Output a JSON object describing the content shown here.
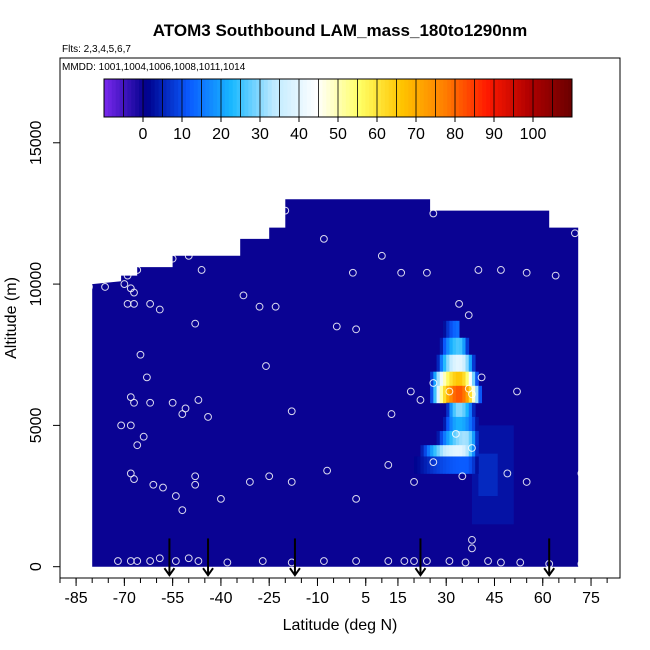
{
  "chart_data": {
    "type": "heatmap",
    "title": "ATOM3 Southbound LAM_mass_180to1290nm",
    "subtitle": "Flts: 2,3,4,5,6,7",
    "note": "MMDD: 1001,1004,1006,1008,1011,1014",
    "xlabel": "Latitude (deg N)",
    "ylabel": "Altitude (m)",
    "xlim": [
      -90,
      84
    ],
    "ylim": [
      -400,
      18000
    ],
    "x_ticks": [
      -85,
      -70,
      -55,
      -40,
      -25,
      -10,
      5,
      15,
      30,
      45,
      60,
      75
    ],
    "y_ticks": [
      0,
      5000,
      10000,
      15000
    ],
    "colorbar": {
      "ticks": [
        0,
        10,
        20,
        30,
        40,
        50,
        60,
        70,
        80,
        90,
        100
      ],
      "range": [
        -10,
        110
      ],
      "colors": [
        "#7a28ee",
        "#00008b",
        "#0a5bff",
        "#19b8ff",
        "#bfeaff",
        "#ffffff",
        "#ffff66",
        "#ffc400",
        "#ff7f00",
        "#ff1a00",
        "#b00000",
        "#6a0000"
      ]
    },
    "background_value": 0,
    "domain_outline": [
      [
        -80,
        0
      ],
      [
        -80,
        10000
      ],
      [
        -71,
        10100
      ],
      [
        -71,
        10300
      ],
      [
        -66,
        10300
      ],
      [
        -66,
        10600
      ],
      [
        -55,
        10600
      ],
      [
        -55,
        11000
      ],
      [
        -34,
        11000
      ],
      [
        -34,
        11600
      ],
      [
        -25,
        11600
      ],
      [
        -25,
        12000
      ],
      [
        -20,
        12000
      ],
      [
        -20,
        13000
      ],
      [
        25,
        13000
      ],
      [
        25,
        12600
      ],
      [
        62,
        12600
      ],
      [
        62,
        12000
      ],
      [
        71,
        12000
      ],
      [
        71,
        0
      ],
      [
        -66,
        0
      ],
      [
        -80,
        0
      ]
    ],
    "plume_rows": [
      {
        "alt": 8400,
        "lat_min": 29,
        "lat_max": 34,
        "peak": 34,
        "value": 14
      },
      {
        "alt": 7800,
        "lat_min": 28,
        "lat_max": 37,
        "peak": 34,
        "value": 26
      },
      {
        "alt": 7200,
        "lat_min": 27,
        "lat_max": 39,
        "peak": 34,
        "value": 40
      },
      {
        "alt": 6600,
        "lat_min": 25,
        "lat_max": 40,
        "peak": 34,
        "value": 66
      },
      {
        "alt": 6100,
        "lat_min": 25,
        "lat_max": 41,
        "peak": 34,
        "value": 82
      },
      {
        "alt": 5500,
        "lat_min": 30,
        "lat_max": 39,
        "peak": 34,
        "value": 30
      },
      {
        "alt": 5000,
        "lat_min": 29,
        "lat_max": 40,
        "peak": 34,
        "value": 22
      },
      {
        "alt": 4500,
        "lat_min": 27,
        "lat_max": 40,
        "peak": 36,
        "value": 32
      },
      {
        "alt": 4000,
        "lat_min": 22,
        "lat_max": 40,
        "peak": 34,
        "value": 40
      },
      {
        "alt": 3600,
        "lat_min": 20,
        "lat_max": 40,
        "peak": 36,
        "value": 12
      }
    ],
    "plume_tail": [
      {
        "lat_min": 38,
        "lat_max": 51,
        "alt_min": 1500,
        "alt_max": 5000,
        "value": 4
      },
      {
        "lat_min": 40,
        "lat_max": 46,
        "alt_min": 2500,
        "alt_max": 4000,
        "value": 7
      }
    ],
    "sample_points": [
      [
        -81,
        9900
      ],
      [
        -76,
        9900
      ],
      [
        -70,
        10000
      ],
      [
        -68,
        9850
      ],
      [
        -69,
        10300
      ],
      [
        -66,
        10500
      ],
      [
        -67,
        9700
      ],
      [
        -69,
        9300
      ],
      [
        -67,
        9300
      ],
      [
        -62,
        9300
      ],
      [
        -59,
        9100
      ],
      [
        -55,
        10900
      ],
      [
        -50,
        11000
      ],
      [
        -46,
        10500
      ],
      [
        -48,
        8600
      ],
      [
        -33,
        9600
      ],
      [
        -28,
        9200
      ],
      [
        -23,
        9200
      ],
      [
        -20,
        12600
      ],
      [
        -8,
        11600
      ],
      [
        1,
        10400
      ],
      [
        10,
        11000
      ],
      [
        16,
        10400
      ],
      [
        24,
        10400
      ],
      [
        26,
        12500
      ],
      [
        34,
        9300
      ],
      [
        37,
        8900
      ],
      [
        40,
        10500
      ],
      [
        47,
        10500
      ],
      [
        55,
        10400
      ],
      [
        64,
        10300
      ],
      [
        70,
        11800
      ],
      [
        -65,
        7500
      ],
      [
        -63,
        6700
      ],
      [
        -68,
        6000
      ],
      [
        -67,
        5800
      ],
      [
        -62,
        5800
      ],
      [
        -55,
        5800
      ],
      [
        -51,
        5600
      ],
      [
        -47,
        5900
      ],
      [
        -52,
        5400
      ],
      [
        -44,
        5300
      ],
      [
        -71,
        5000
      ],
      [
        -68,
        5000
      ],
      [
        -64,
        4600
      ],
      [
        -66,
        4300
      ],
      [
        -26,
        7100
      ],
      [
        -18,
        5500
      ],
      [
        -4,
        8500
      ],
      [
        2,
        8400
      ],
      [
        13,
        5400
      ],
      [
        19,
        6200
      ],
      [
        22,
        5900
      ],
      [
        26,
        6500
      ],
      [
        31,
        6200
      ],
      [
        33,
        4700
      ],
      [
        37,
        6300
      ],
      [
        38,
        6100
      ],
      [
        41,
        6700
      ],
      [
        52,
        6200
      ],
      [
        38,
        4200
      ],
      [
        -68,
        3300
      ],
      [
        -67,
        3100
      ],
      [
        -61,
        2900
      ],
      [
        -58,
        2800
      ],
      [
        -54,
        2500
      ],
      [
        -48,
        3200
      ],
      [
        -48,
        2900
      ],
      [
        -52,
        2000
      ],
      [
        -40,
        2400
      ],
      [
        -31,
        3000
      ],
      [
        -25,
        3200
      ],
      [
        -18,
        3000
      ],
      [
        -7,
        3400
      ],
      [
        2,
        2400
      ],
      [
        12,
        3600
      ],
      [
        20,
        3000
      ],
      [
        26,
        3700
      ],
      [
        35,
        3200
      ],
      [
        49,
        3300
      ],
      [
        55,
        3000
      ],
      [
        72,
        3300
      ],
      [
        -72,
        200
      ],
      [
        -68,
        200
      ],
      [
        -66,
        200
      ],
      [
        -62,
        200
      ],
      [
        -59,
        300
      ],
      [
        -54,
        200
      ],
      [
        -50,
        300
      ],
      [
        -47,
        200
      ],
      [
        -38,
        150
      ],
      [
        -27,
        200
      ],
      [
        -18,
        150
      ],
      [
        -8,
        200
      ],
      [
        2,
        200
      ],
      [
        12,
        200
      ],
      [
        17,
        200
      ],
      [
        20,
        200
      ],
      [
        24,
        200
      ],
      [
        31,
        200
      ],
      [
        38,
        950
      ],
      [
        38,
        650
      ],
      [
        36,
        150
      ],
      [
        43,
        200
      ],
      [
        47,
        150
      ],
      [
        53,
        150
      ],
      [
        62,
        100
      ],
      [
        72,
        100
      ]
    ],
    "arrows_lat": [
      -56,
      -44,
      -17,
      22,
      62
    ],
    "grid": false,
    "legend": "colorbar top"
  }
}
